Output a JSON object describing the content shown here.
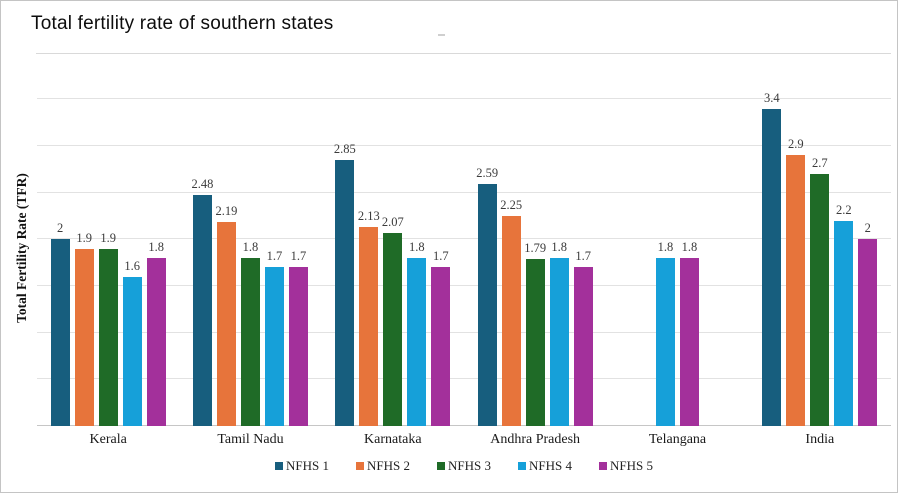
{
  "chart_data": {
    "type": "bar",
    "title": "Total fertility rate of southern states",
    "xlabel": "",
    "ylabel": "Total Fertility Rate (TFR)",
    "ylim": [
      0,
      3.5
    ],
    "gridline_step": 0.5,
    "grid": true,
    "legend_position": "bottom-center",
    "categories": [
      "Kerala",
      "Tamil Nadu",
      "Karnataka",
      "Andhra Pradesh",
      "Telangana",
      "India"
    ],
    "series": [
      {
        "name": "NFHS 1",
        "color": "#175E7E",
        "values": [
          2,
          2.48,
          2.85,
          2.59,
          null,
          3.4
        ]
      },
      {
        "name": "NFHS 2",
        "color": "#E7743B",
        "values": [
          1.9,
          2.19,
          2.13,
          2.25,
          null,
          2.9
        ]
      },
      {
        "name": "NFHS 3",
        "color": "#1F6B27",
        "values": [
          1.9,
          1.8,
          2.07,
          1.79,
          null,
          2.7
        ]
      },
      {
        "name": "NFHS 4",
        "color": "#16A0D9",
        "values": [
          1.6,
          1.7,
          1.8,
          1.8,
          1.8,
          2.2
        ]
      },
      {
        "name": "NFHS 5",
        "color": "#A3309B",
        "values": [
          1.8,
          1.7,
          1.7,
          1.7,
          1.8,
          2
        ]
      }
    ]
  }
}
